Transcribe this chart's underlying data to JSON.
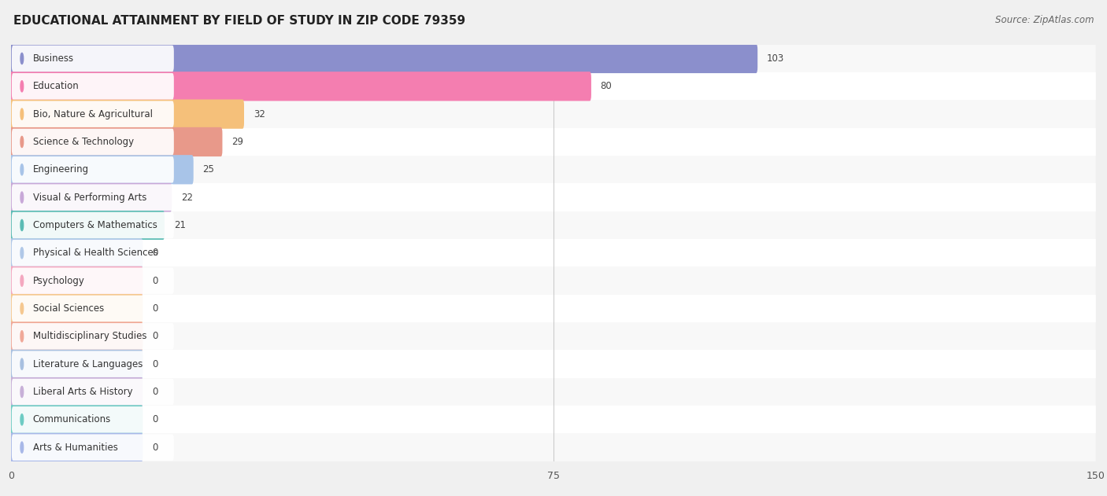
{
  "title": "EDUCATIONAL ATTAINMENT BY FIELD OF STUDY IN ZIP CODE 79359",
  "source": "Source: ZipAtlas.com",
  "categories": [
    "Business",
    "Education",
    "Bio, Nature & Agricultural",
    "Science & Technology",
    "Engineering",
    "Visual & Performing Arts",
    "Computers & Mathematics",
    "Physical & Health Sciences",
    "Psychology",
    "Social Sciences",
    "Multidisciplinary Studies",
    "Literature & Languages",
    "Liberal Arts & History",
    "Communications",
    "Arts & Humanities"
  ],
  "values": [
    103,
    80,
    32,
    29,
    25,
    22,
    21,
    0,
    0,
    0,
    0,
    0,
    0,
    0,
    0
  ],
  "bar_colors": [
    "#8b8fcc",
    "#f47eb0",
    "#f5c07a",
    "#e8998a",
    "#a8c4e8",
    "#c8a8d8",
    "#5bbcb4",
    "#b0c8e8",
    "#f4a8c0",
    "#f5c890",
    "#f0a898",
    "#a8c0e0",
    "#c8b0d8",
    "#6eccc4",
    "#a8b8e8"
  ],
  "row_colors": [
    "#f8f8f8",
    "#ffffff"
  ],
  "xlim": [
    0,
    150
  ],
  "xticks": [
    0,
    75,
    150
  ],
  "background_color": "#f0f0f0",
  "title_fontsize": 11,
  "source_fontsize": 8.5,
  "label_fontsize": 8.5,
  "value_fontsize": 8.5,
  "zero_stub": 18,
  "bar_height": 0.62
}
